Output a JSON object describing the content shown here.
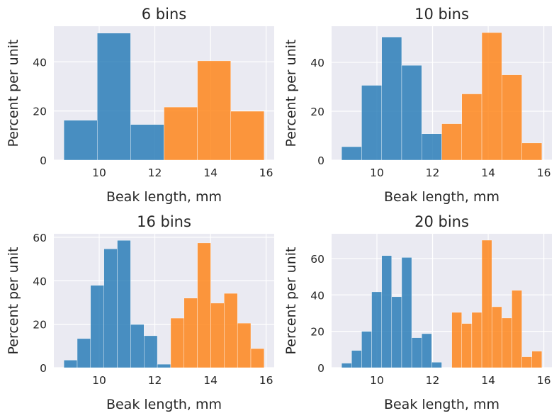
{
  "chart_data": [
    {
      "type": "histogram",
      "title": "6 bins",
      "xlabel": "Beak length, mm",
      "ylabel": "Percent per unit",
      "xlim": [
        8.37,
        16.29
      ],
      "ylim": [
        0,
        54.5
      ],
      "xticks": [
        "10",
        "12",
        "14",
        "16"
      ],
      "yticks": [
        "0",
        "20",
        "40"
      ],
      "grid": true,
      "series": [
        {
          "color": "#1f77b4",
          "edges": [
            8.73,
            9.93,
            11.13,
            12.33
          ],
          "values": [
            16.2,
            51.7,
            14.5
          ]
        },
        {
          "color": "#ff7f0e",
          "edges": [
            12.33,
            13.53,
            14.73,
            15.93
          ],
          "values": [
            21.6,
            40.4,
            19.9
          ]
        }
      ]
    },
    {
      "type": "histogram",
      "title": "10 bins",
      "xlabel": "Beak length, mm",
      "ylabel": "Percent per unit",
      "xlim": [
        8.37,
        16.29
      ],
      "ylim": [
        0,
        54.8
      ],
      "xticks": [
        "10",
        "12",
        "14",
        "16"
      ],
      "yticks": [
        "0",
        "20",
        "40"
      ],
      "grid": true,
      "series": [
        {
          "color": "#1f77b4",
          "edges": [
            8.73,
            9.45,
            10.17,
            10.89,
            11.61,
            12.33
          ],
          "values": [
            5.5,
            30.6,
            50.4,
            38.8,
            10.8
          ]
        },
        {
          "color": "#ff7f0e",
          "edges": [
            12.33,
            13.05,
            13.77,
            14.49,
            15.21,
            15.93
          ],
          "values": [
            14.9,
            27.1,
            52.2,
            34.9,
            7.0
          ]
        }
      ]
    },
    {
      "type": "histogram",
      "title": "16 bins",
      "xlabel": "Beak length, mm",
      "ylabel": "Percent per unit",
      "xlim": [
        8.37,
        16.29
      ],
      "ylim": [
        0,
        61.6
      ],
      "xticks": [
        "10",
        "12",
        "14",
        "16"
      ],
      "yticks": [
        "0",
        "20",
        "40",
        "60"
      ],
      "grid": true,
      "series": [
        {
          "color": "#1f77b4",
          "edges": [
            8.73,
            9.21,
            9.69,
            10.17,
            10.65,
            11.13,
            11.61,
            12.09,
            12.57
          ],
          "values": [
            3.5,
            13.4,
            37.9,
            54.7,
            58.6,
            19.9,
            14.7,
            1.6
          ]
        },
        {
          "color": "#ff7f0e",
          "edges": [
            12.57,
            13.05,
            13.53,
            14.01,
            14.49,
            14.97,
            15.45,
            15.93
          ],
          "values": [
            22.8,
            32.0,
            57.4,
            29.7,
            34.2,
            20.5,
            8.8
          ]
        }
      ]
    },
    {
      "type": "histogram",
      "title": "20 bins",
      "xlabel": "Beak length, mm",
      "ylabel": "Percent per unit",
      "xlim": [
        8.37,
        16.29
      ],
      "ylim": [
        0,
        73.6
      ],
      "xticks": [
        "10",
        "12",
        "14",
        "16"
      ],
      "yticks": [
        "0",
        "20",
        "40",
        "60"
      ],
      "grid": true,
      "series": [
        {
          "color": "#1f77b4",
          "edges": [
            8.73,
            9.09,
            9.45,
            9.81,
            10.17,
            10.53,
            10.89,
            11.25,
            11.61,
            11.97,
            12.33
          ],
          "values": [
            2.5,
            9.5,
            20.0,
            41.7,
            61.6,
            39.0,
            60.6,
            16.5,
            18.7,
            3.0
          ]
        },
        {
          "color": "#ff7f0e",
          "edges": [
            12.69,
            13.05,
            13.41,
            13.77,
            14.13,
            14.49,
            14.85,
            15.21,
            15.57,
            15.93
          ],
          "values": [
            30.4,
            24.3,
            30.4,
            70.1,
            33.5,
            27.3,
            42.5,
            6.0,
            9.1
          ]
        }
      ]
    }
  ]
}
